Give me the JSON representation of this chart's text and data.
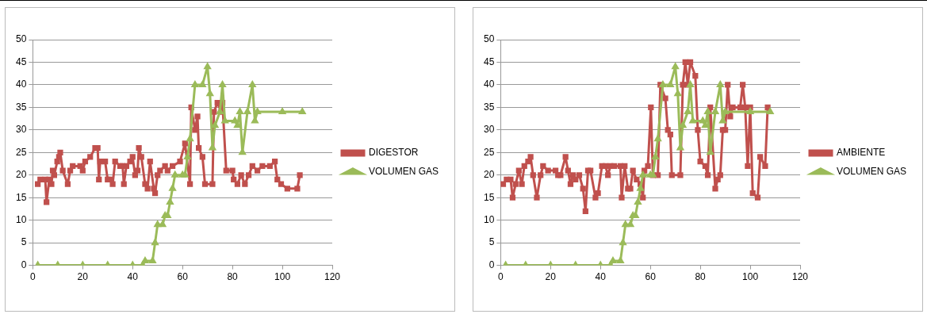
{
  "chart_data": [
    {
      "type": "line",
      "xlim": [
        0,
        120
      ],
      "xticks": [
        0,
        20,
        40,
        60,
        80,
        100,
        120
      ],
      "ylim": [
        0,
        50
      ],
      "yticks": [
        0,
        5,
        10,
        15,
        20,
        25,
        30,
        35,
        40,
        45,
        50
      ],
      "grid": "y",
      "legend": "right",
      "series": [
        {
          "name": "DIGESTOR",
          "color": "#c0504d",
          "marker": "square",
          "x": [
            2,
            3,
            5,
            5.5,
            6.6,
            7.5,
            8,
            8.6,
            9.8,
            10.5,
            11,
            12,
            14,
            15,
            16,
            19,
            20,
            21,
            23,
            25,
            26,
            26.5,
            27,
            29,
            30,
            31,
            32,
            33,
            35,
            36,
            36.5,
            37.5,
            39,
            40,
            41,
            42,
            42.5,
            43.5,
            45,
            46,
            47,
            48.5,
            49,
            50,
            51,
            53,
            54,
            56,
            59,
            61,
            63,
            63.5,
            65,
            66,
            66.5,
            68,
            69,
            72,
            72.6,
            74,
            75.5,
            76,
            77.5,
            80,
            80.5,
            82,
            83.5,
            85,
            86.5,
            88,
            90,
            92,
            95,
            97,
            98,
            99.5,
            102,
            106,
            107
          ],
          "values": [
            18,
            19,
            19,
            14,
            19,
            18,
            21,
            20,
            23,
            24,
            25,
            21,
            18,
            21,
            22,
            22,
            21,
            23,
            24,
            26,
            26,
            19,
            23,
            23,
            19,
            19,
            18,
            23,
            22,
            22,
            18,
            22,
            23,
            24,
            20,
            21,
            26,
            24,
            18,
            17,
            23,
            17,
            16,
            20,
            21,
            22,
            21,
            22,
            23,
            27,
            18,
            35,
            30,
            33,
            26,
            24,
            18,
            18,
            34,
            36,
            34,
            36,
            21,
            21,
            19,
            18,
            20,
            18,
            20,
            22,
            21,
            22,
            22,
            23,
            19,
            18,
            17,
            17,
            20
          ]
        },
        {
          "name": "VOLUMEN GAS",
          "color": "#9bbb59",
          "marker": "triangle",
          "x": [
            2,
            10,
            20,
            30,
            40,
            44,
            45,
            48,
            49,
            50,
            52,
            53,
            54,
            55,
            56,
            57,
            60,
            61,
            62,
            63,
            65,
            68,
            70,
            71,
            72,
            73,
            75,
            76,
            77,
            81,
            82,
            83,
            84,
            86,
            88,
            89,
            90,
            100,
            108
          ],
          "values": [
            0,
            0,
            0,
            0,
            0,
            0,
            1,
            1,
            5,
            9,
            9,
            11,
            11,
            14,
            17,
            20,
            20,
            20,
            24,
            28,
            40,
            40,
            44,
            38,
            26,
            31,
            34,
            40,
            32,
            32,
            31,
            34,
            25,
            34,
            40,
            32,
            34,
            34,
            34
          ]
        }
      ]
    },
    {
      "type": "line",
      "xlim": [
        0,
        120
      ],
      "xticks": [
        0,
        20,
        40,
        60,
        80,
        100,
        120
      ],
      "ylim": [
        0,
        50
      ],
      "yticks": [
        0,
        5,
        10,
        15,
        20,
        25,
        30,
        35,
        40,
        45,
        50
      ],
      "grid": "y",
      "legend": "right",
      "series": [
        {
          "name": "AMBIENTE",
          "color": "#c0504d",
          "marker": "square",
          "x": [
            1,
            2.4,
            4,
            4.8,
            6,
            7.3,
            8.5,
            9.5,
            11,
            12,
            13,
            14.5,
            16,
            17,
            19,
            22,
            23,
            24,
            26,
            27,
            28,
            29,
            30,
            31.5,
            33,
            34,
            35,
            36,
            38,
            39,
            40.6,
            42,
            43,
            44,
            45.5,
            48,
            48.5,
            49.7,
            51,
            52,
            53,
            54.5,
            56,
            57,
            57.6,
            59,
            60.2,
            61,
            63,
            64,
            66,
            67,
            68,
            68.6,
            72,
            73,
            74,
            75,
            76,
            78,
            79,
            80,
            82,
            83,
            84,
            86,
            87,
            88,
            89,
            90,
            91,
            92,
            93,
            96,
            97,
            98,
            99,
            100,
            101,
            103,
            104,
            106,
            107
          ],
          "values": [
            18,
            19,
            19,
            15,
            18,
            21,
            18,
            22,
            23,
            24,
            20,
            15,
            20,
            22,
            21,
            21,
            20,
            20,
            24,
            21,
            18,
            20,
            19,
            20,
            17,
            12,
            21,
            21,
            15,
            16,
            22,
            22,
            20,
            22,
            22,
            22,
            15,
            22,
            17,
            17,
            21,
            19,
            18,
            15,
            21,
            22,
            35,
            20,
            20,
            40,
            37,
            30,
            29,
            20,
            20,
            40,
            45,
            40,
            45,
            42,
            30,
            23,
            22,
            20,
            35,
            17,
            19,
            20,
            30,
            30,
            40,
            33,
            35,
            35,
            40,
            35,
            22,
            35,
            16,
            15,
            24,
            22,
            35
          ]
        },
        {
          "name": "VOLUMEN GAS",
          "color": "#9bbb59",
          "marker": "triangle",
          "x": [
            2,
            10,
            20,
            30,
            40,
            44,
            45,
            48,
            49,
            50,
            52,
            53,
            54,
            55,
            56,
            57,
            60,
            61,
            62,
            63,
            65,
            68,
            70,
            71,
            72,
            73,
            75,
            76,
            77,
            81,
            82,
            83,
            84,
            86,
            88,
            89,
            90,
            100,
            108
          ],
          "values": [
            0,
            0,
            0,
            0,
            0,
            0,
            1,
            1,
            5,
            9,
            9,
            11,
            11,
            14,
            17,
            20,
            20,
            20,
            24,
            28,
            40,
            40,
            44,
            38,
            26,
            31,
            34,
            40,
            32,
            32,
            31,
            34,
            25,
            34,
            40,
            32,
            34,
            34,
            34
          ]
        }
      ]
    }
  ]
}
